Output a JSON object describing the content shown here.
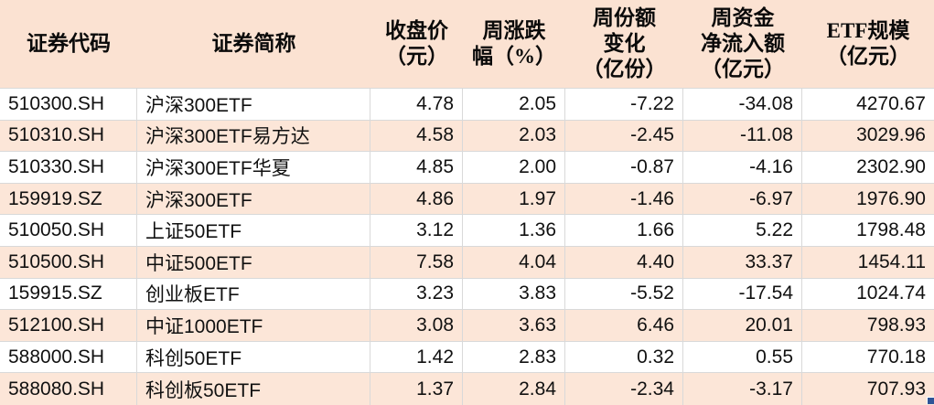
{
  "table": {
    "columns": [
      {
        "key": "code",
        "label": "证券代码",
        "align": "left"
      },
      {
        "key": "name",
        "label": "证券简称",
        "align": "left"
      },
      {
        "key": "close",
        "label": "收盘价\n（元）",
        "align": "right"
      },
      {
        "key": "week_change",
        "label": "周涨跌\n幅（%）",
        "align": "right"
      },
      {
        "key": "share_change",
        "label": "周份额\n变化\n（亿份）",
        "align": "right"
      },
      {
        "key": "net_inflow",
        "label": "周资金\n净流入额\n（亿元）",
        "align": "right"
      },
      {
        "key": "etf_scale",
        "label": "ETF规模\n（亿元）",
        "align": "right"
      }
    ],
    "rows": [
      [
        "510300.SH",
        "沪深300ETF",
        "4.78",
        "2.05",
        "-7.22",
        "-34.08",
        "4270.67"
      ],
      [
        "510310.SH",
        "沪深300ETF易方达",
        "4.58",
        "2.03",
        "-2.45",
        "-11.08",
        "3029.96"
      ],
      [
        "510330.SH",
        "沪深300ETF华夏",
        "4.85",
        "2.00",
        "-0.87",
        "-4.16",
        "2302.90"
      ],
      [
        "159919.SZ",
        "沪深300ETF",
        "4.86",
        "1.97",
        "-1.46",
        "-6.97",
        "1976.90"
      ],
      [
        "510050.SH",
        "上证50ETF",
        "3.12",
        "1.36",
        "1.66",
        "5.22",
        "1798.48"
      ],
      [
        "510500.SH",
        "中证500ETF",
        "7.58",
        "4.04",
        "4.40",
        "33.37",
        "1454.11"
      ],
      [
        "159915.SZ",
        "创业板ETF",
        "3.23",
        "3.83",
        "-5.52",
        "-17.54",
        "1024.74"
      ],
      [
        "512100.SH",
        "中证1000ETF",
        "3.08",
        "3.63",
        "6.46",
        "20.01",
        "798.93"
      ],
      [
        "588000.SH",
        "科创50ETF",
        "1.42",
        "2.83",
        "0.32",
        "0.55",
        "770.18"
      ],
      [
        "588080.SH",
        "科创板50ETF",
        "1.37",
        "2.84",
        "-2.34",
        "-3.17",
        "707.93"
      ]
    ],
    "banded_row_indices": [
      1,
      3,
      5,
      7,
      9
    ],
    "colors": {
      "header_bg": "#fbe2d2",
      "band_bg": "#fce6d8",
      "grid_line": "#d9d9d9",
      "text": "#111111",
      "selection_handle": "#2f5597"
    }
  }
}
